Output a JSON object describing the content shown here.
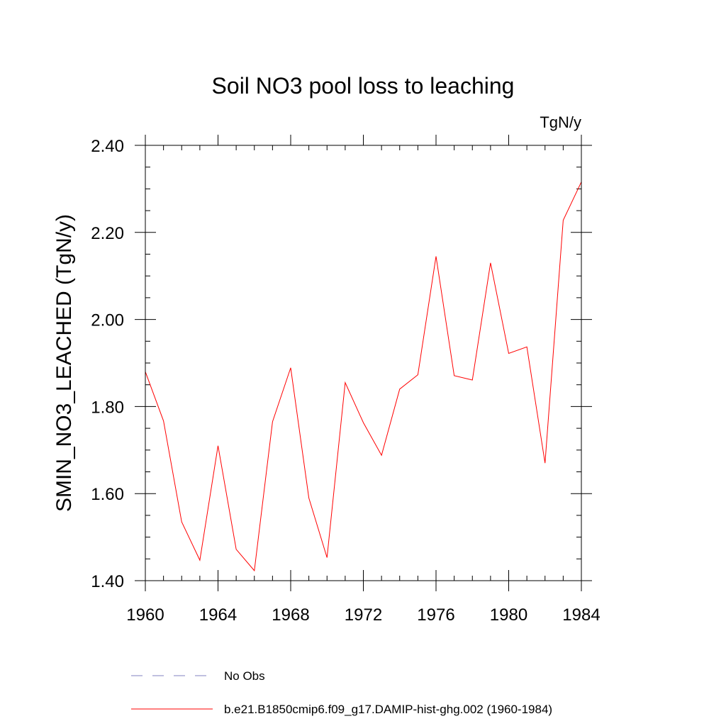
{
  "chart_data": {
    "type": "line",
    "title": "Soil NO3 pool loss to leaching",
    "units": "TgN/y",
    "ylabel": "SMIN_NO3_LEACHED  (TgN/y)",
    "xlabel": "",
    "xlim": [
      1960,
      1984
    ],
    "ylim": [
      1.4,
      2.4
    ],
    "x_ticks": [
      {
        "value": 1960,
        "label": "1960"
      },
      {
        "value": 1964,
        "label": "1964"
      },
      {
        "value": 1968,
        "label": "1968"
      },
      {
        "value": 1972,
        "label": "1972"
      },
      {
        "value": 1976,
        "label": "1976"
      },
      {
        "value": 1980,
        "label": "1980"
      },
      {
        "value": 1984,
        "label": "1984"
      }
    ],
    "y_ticks": [
      {
        "value": 1.4,
        "label": "1.40"
      },
      {
        "value": 1.6,
        "label": "1.60"
      },
      {
        "value": 1.8,
        "label": "1.80"
      },
      {
        "value": 2.0,
        "label": "2.00"
      },
      {
        "value": 2.2,
        "label": "2.20"
      },
      {
        "value": 2.4,
        "label": "2.40"
      }
    ],
    "grid": false,
    "legend_position": "bottom",
    "series": [
      {
        "name": "b.e21.B1850cmip6.f09_g17.DAMIP-hist-ghg.002 (1960-1984)",
        "color": "#ff0000",
        "style": "solid",
        "x": [
          1960,
          1961,
          1962,
          1963,
          1964,
          1965,
          1966,
          1967,
          1968,
          1969,
          1970,
          1971,
          1972,
          1973,
          1974,
          1975,
          1976,
          1977,
          1978,
          1979,
          1980,
          1981,
          1982,
          1983,
          1984
        ],
        "y": [
          1.88,
          1.767,
          1.535,
          1.447,
          1.71,
          1.472,
          1.423,
          1.765,
          1.889,
          1.59,
          1.453,
          1.855,
          1.763,
          1.688,
          1.84,
          1.873,
          2.145,
          1.871,
          1.861,
          2.13,
          1.922,
          1.937,
          1.67,
          2.228,
          2.316
        ]
      }
    ],
    "legend": [
      {
        "label": "No Obs",
        "color": "#8080c0",
        "style": "dashed"
      },
      {
        "label": "b.e21.B1850cmip6.f09_g17.DAMIP-hist-ghg.002 (1960-1984)",
        "color": "#ff0000",
        "style": "solid"
      }
    ]
  }
}
